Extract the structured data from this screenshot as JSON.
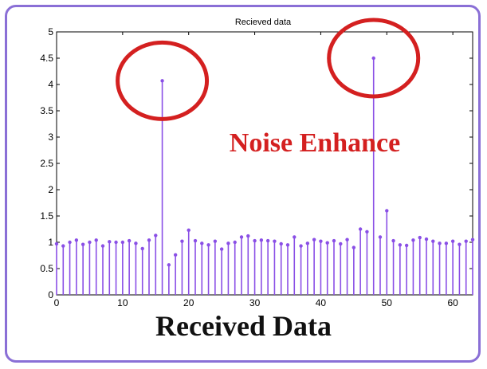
{
  "colors": {
    "stem": "#8a4fe6",
    "circle": "#d42020",
    "frame": "#8a6fd6"
  },
  "annotation": {
    "text": "Noise Enhance"
  },
  "caption": {
    "text": "Received Data"
  },
  "chart_data": {
    "type": "stem",
    "title": "Recieved data",
    "xlabel": "",
    "ylabel": "",
    "xlim": [
      0,
      63
    ],
    "ylim": [
      0,
      5
    ],
    "xticks": [
      "0",
      "10",
      "20",
      "30",
      "40",
      "50",
      "60"
    ],
    "yticks": [
      "0",
      "0.5",
      "1",
      "1.5",
      "2",
      "2.5",
      "3",
      "3.5",
      "4",
      "4.5",
      "5"
    ],
    "grid": false,
    "x": [
      0,
      1,
      2,
      3,
      4,
      5,
      6,
      7,
      8,
      9,
      10,
      11,
      12,
      13,
      14,
      15,
      16,
      17,
      18,
      19,
      20,
      21,
      22,
      23,
      24,
      25,
      26,
      27,
      28,
      29,
      30,
      31,
      32,
      33,
      34,
      35,
      36,
      37,
      38,
      39,
      40,
      41,
      42,
      43,
      44,
      45,
      46,
      47,
      48,
      49,
      50,
      51,
      52,
      53,
      54,
      55,
      56,
      57,
      58,
      59,
      60,
      61,
      62,
      63
    ],
    "y": [
      0.97,
      0.93,
      1.0,
      1.04,
      0.96,
      1.0,
      1.04,
      0.93,
      1.01,
      1.0,
      1.0,
      1.03,
      0.98,
      0.88,
      1.04,
      1.13,
      4.07,
      0.57,
      0.76,
      1.02,
      1.23,
      1.03,
      0.98,
      0.95,
      1.02,
      0.87,
      0.98,
      1.0,
      1.1,
      1.12,
      1.03,
      1.04,
      1.03,
      1.02,
      0.97,
      0.95,
      1.1,
      0.93,
      0.98,
      1.05,
      1.02,
      0.99,
      1.03,
      0.97,
      1.05,
      0.9,
      1.25,
      1.2,
      4.5,
      1.1,
      1.6,
      1.03,
      0.95,
      0.94,
      1.04,
      1.09,
      1.06,
      1.02,
      0.98,
      0.98,
      1.02,
      0.96,
      1.02,
      1.05
    ],
    "highlighted_points": [
      16,
      48
    ]
  }
}
